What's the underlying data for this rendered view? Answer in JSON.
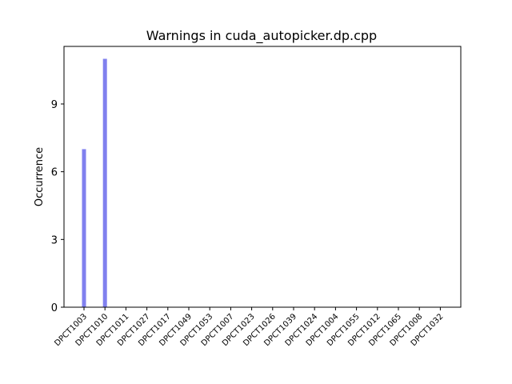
{
  "chart_data": {
    "type": "bar",
    "title": "Warnings in cuda_autopicker.dp.cpp",
    "xlabel": "",
    "ylabel": "Occurrence",
    "categories": [
      "DPCT1003",
      "DPCT1010",
      "DPCT1011",
      "DPCT1027",
      "DPCT1017",
      "DPCT1049",
      "DPCT1053",
      "DPCT1007",
      "DPCT1023",
      "DPCT1026",
      "DPCT1039",
      "DPCT1024",
      "DPCT1004",
      "DPCT1055",
      "DPCT1012",
      "DPCT1065",
      "DPCT1008",
      "DPCT1032"
    ],
    "values": [
      7,
      11,
      0,
      0,
      0,
      0,
      0,
      0,
      0,
      0,
      0,
      0,
      0,
      0,
      0,
      0,
      0,
      0
    ],
    "ylim": [
      0,
      11.55
    ],
    "yticks": [
      0,
      3,
      6,
      9
    ],
    "grid": false,
    "bar_color": "#8080ee"
  }
}
